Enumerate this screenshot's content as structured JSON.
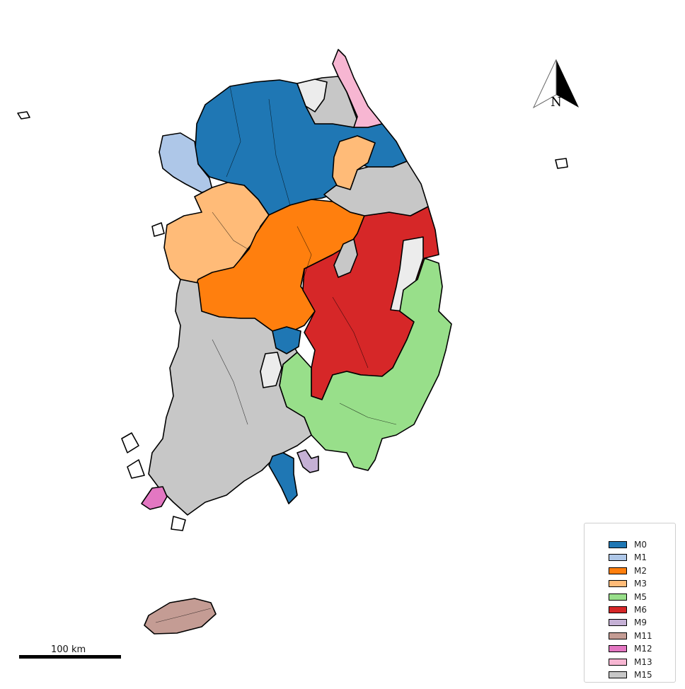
{
  "legend": {
    "items": [
      {
        "label": "M0",
        "color": "#1f77b4"
      },
      {
        "label": "M1",
        "color": "#aec7e8"
      },
      {
        "label": "M2",
        "color": "#ff7f0e"
      },
      {
        "label": "M3",
        "color": "#ffbb78"
      },
      {
        "label": "M5",
        "color": "#98df8a"
      },
      {
        "label": "M6",
        "color": "#d62728"
      },
      {
        "label": "M9",
        "color": "#c5b0d5"
      },
      {
        "label": "M11",
        "color": "#c49c94"
      },
      {
        "label": "M12",
        "color": "#e377c2"
      },
      {
        "label": "M13",
        "color": "#f7b6d2"
      },
      {
        "label": "M15",
        "color": "#c7c7c7"
      }
    ]
  },
  "unclassified_color": "#ececec",
  "scale_bar": {
    "label": "100 km"
  },
  "north_arrow": {
    "label": "N"
  }
}
